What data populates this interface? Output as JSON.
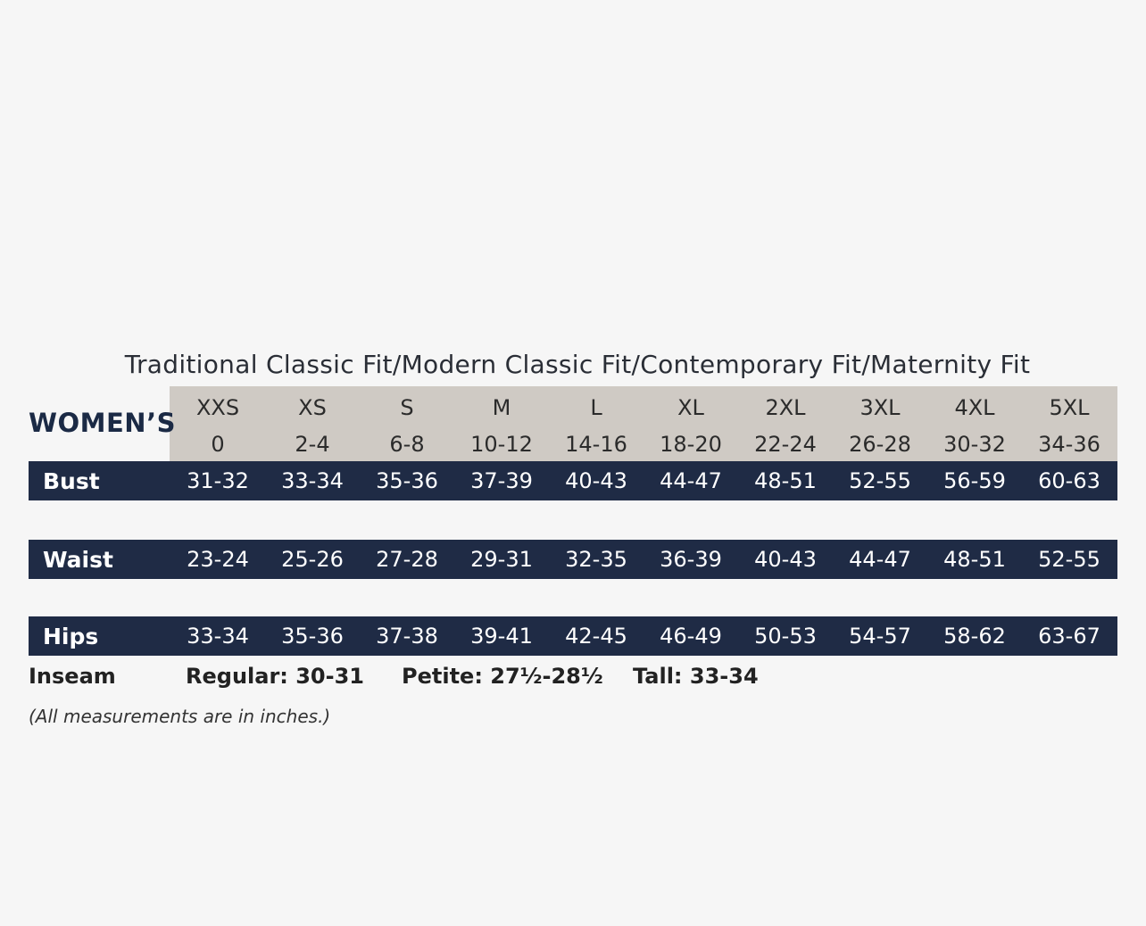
{
  "subtitle": "Traditional Classic Fit/Modern Classic Fit/Contemporary Fit/Maternity Fit",
  "table_label": "WOMEN’S",
  "sizes": [
    "XXS",
    "XS",
    "S",
    "M",
    "L",
    "XL",
    "2XL",
    "3XL",
    "4XL",
    "5XL"
  ],
  "numeric_sizes": [
    "0",
    "2-4",
    "6-8",
    "10-12",
    "14-16",
    "18-20",
    "22-24",
    "26-28",
    "30-32",
    "34-36"
  ],
  "rows": [
    {
      "label": "Bust",
      "values": [
        "31-32",
        "33-34",
        "35-36",
        "37-39",
        "40-43",
        "44-47",
        "48-51",
        "52-55",
        "56-59",
        "60-63"
      ]
    },
    {
      "label": "Waist",
      "values": [
        "23-24",
        "25-26",
        "27-28",
        "29-31",
        "32-35",
        "36-39",
        "40-43",
        "44-47",
        "48-51",
        "52-55"
      ]
    },
    {
      "label": "Hips",
      "values": [
        "33-34",
        "35-36",
        "37-38",
        "39-41",
        "42-45",
        "46-49",
        "50-53",
        "54-57",
        "58-62",
        "63-67"
      ]
    }
  ],
  "inseam": {
    "label": "Inseam",
    "regular": "Regular: 30-31",
    "petite": "Petite: 27½-28½",
    "tall": "Tall: 33-34"
  },
  "note": "(All measurements are in inches.)",
  "colors": {
    "band": "#1f2b45",
    "header_bg": "#cfcac4",
    "page_bg": "#f6f6f6"
  }
}
